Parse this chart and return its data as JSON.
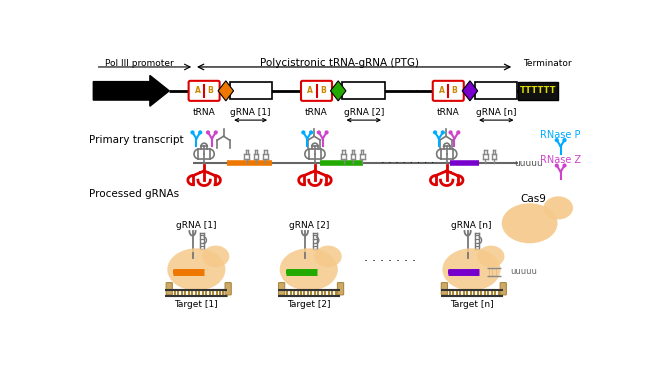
{
  "bg_color": "#ffffff",
  "top_label": "Polycistronic tRNA-gRNA (PTG)",
  "pol3_label": "Pol III promoter",
  "terminator_label": "Terminator",
  "trna_color": "#dd0000",
  "grna1_color": "#ee7700",
  "grna2_color": "#22aa00",
  "grnan_color": "#7700cc",
  "tT_color": "#dddd00",
  "tT_bg": "#111111",
  "rnase_p_color": "#00aaff",
  "rnase_z_color": "#cc44cc",
  "cas9_color": "#f5c98a",
  "cas9_color2": "#f0b060",
  "dna_color": "#cc9944",
  "grna_bg": "#e8a840"
}
